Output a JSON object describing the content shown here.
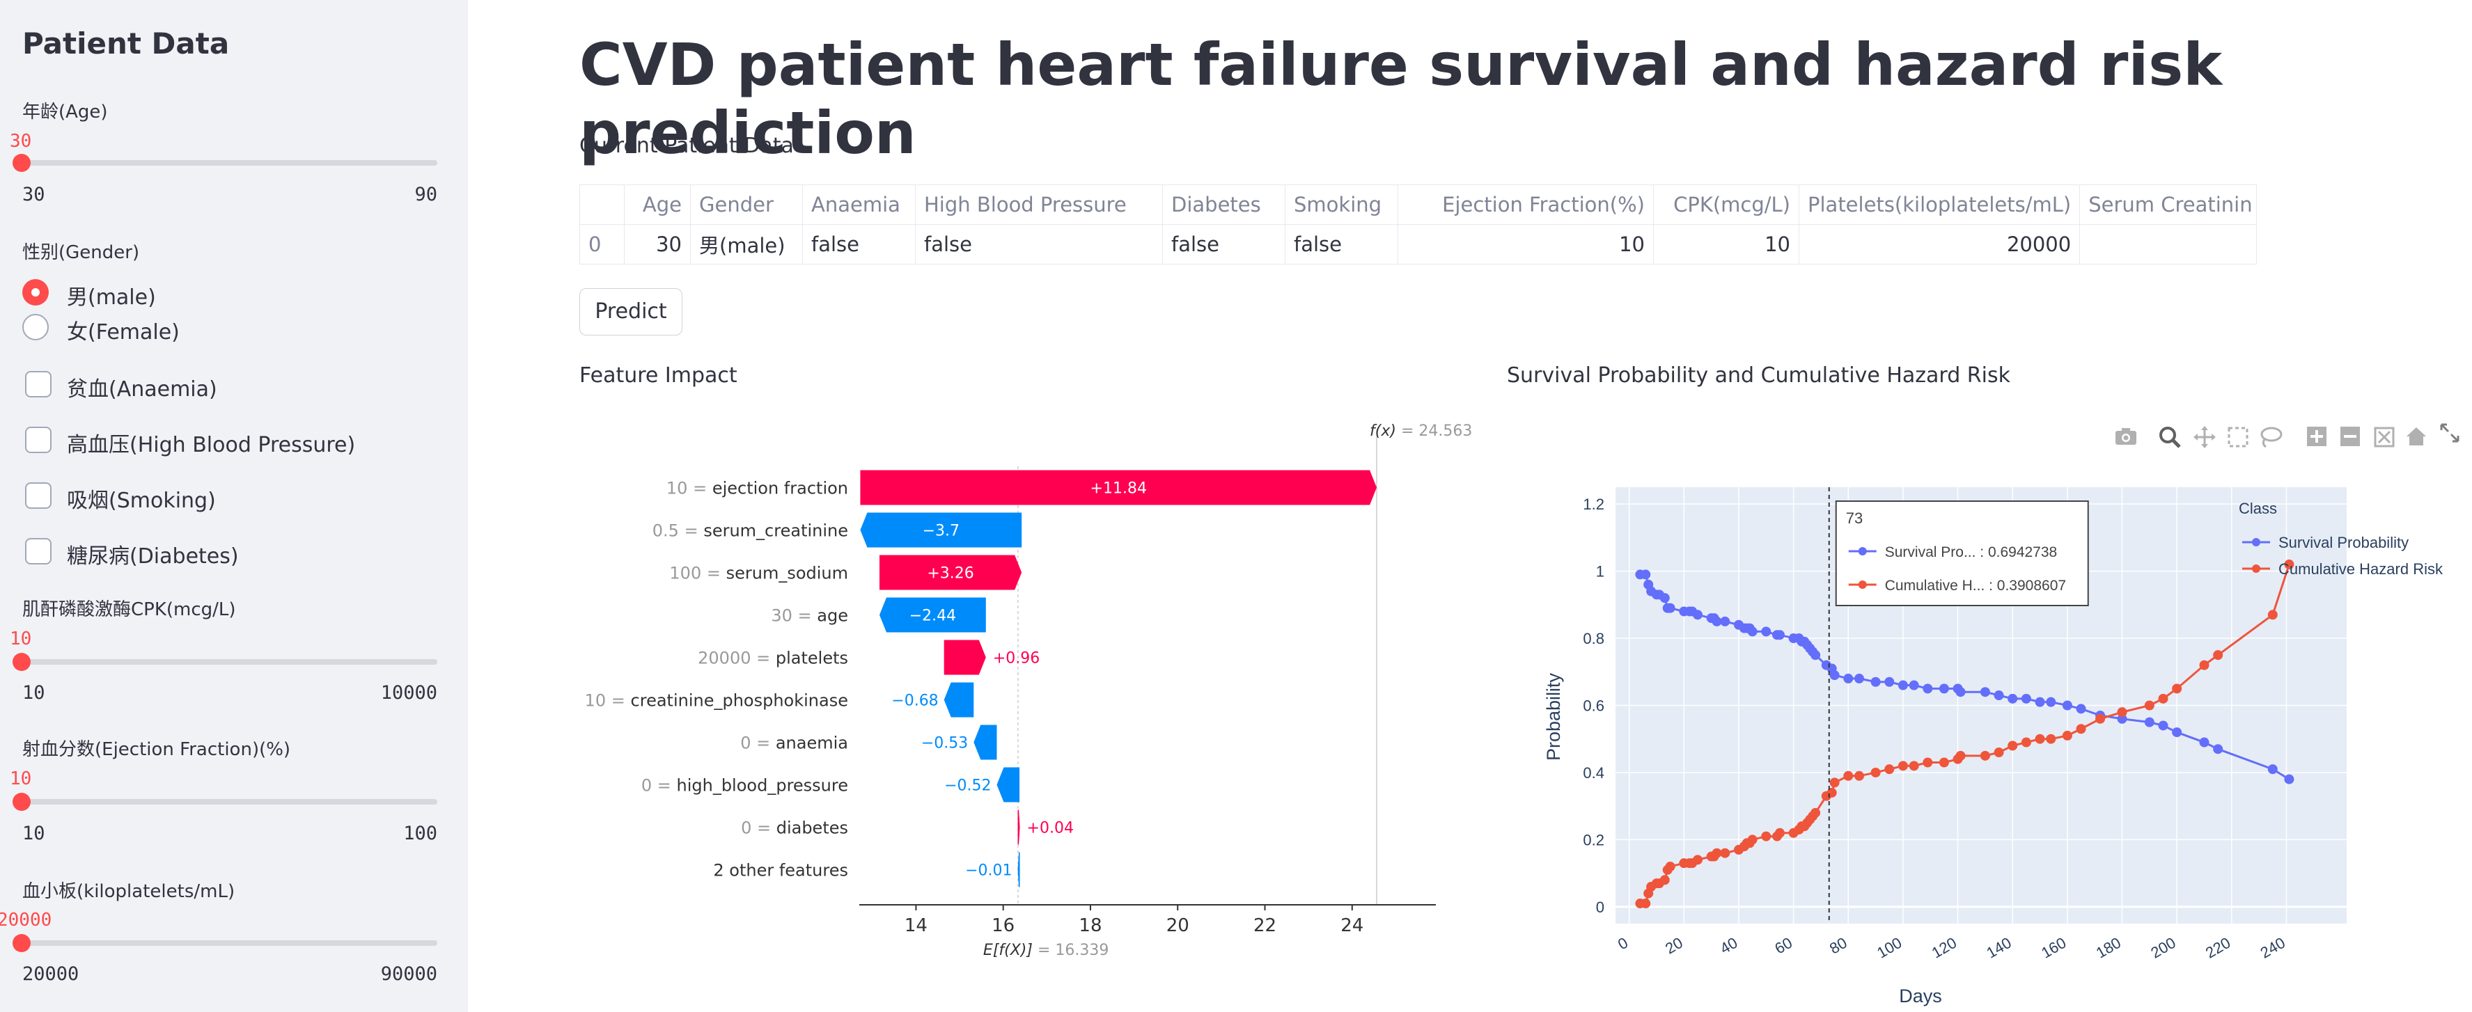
{
  "sidebar": {
    "title": "Patient Data",
    "age": {
      "label": "年龄(Age)",
      "value": "30",
      "min": "30",
      "max": "90",
      "fraction": 0
    },
    "gender": {
      "label": "性别(Gender)",
      "options": [
        "男(male)",
        "女(Female)"
      ],
      "selected": "男(male)"
    },
    "checkboxes": [
      "贫血(Anaemia)",
      "高血压(High Blood Pressure)",
      "吸烟(Smoking)",
      "糖尿病(Diabetes)"
    ],
    "cpk": {
      "label": "肌酐磷酸激酶CPK(mcg/L)",
      "value": "10",
      "min": "10",
      "max": "10000",
      "fraction": 0
    },
    "ejection": {
      "label": "射血分数(Ejection Fraction)(%)",
      "value": "10",
      "min": "10",
      "max": "100",
      "fraction": 0
    },
    "platelets": {
      "label": "血小板(kiloplatelets/mL)",
      "value": "20000",
      "min": "20000",
      "max": "90000",
      "fraction": 0
    }
  },
  "main": {
    "title": "CVD patient heart failure survival and hazard risk prediction",
    "current_label": "Current Patient Data",
    "table": {
      "headers": [
        "",
        "Age",
        "Gender",
        "Anaemia",
        "High Blood Pressure",
        "Diabetes",
        "Smoking",
        "Ejection Fraction(%)",
        "CPK(mcg/L)",
        "Platelets(kiloplatelets/mL)",
        "Serum Creatinin"
      ],
      "row": [
        "0",
        "30",
        "男(male)",
        "false",
        "false",
        "false",
        "false",
        "10",
        "10",
        "20000",
        ""
      ]
    },
    "predict_label": "Predict",
    "feature_impact_label": "Feature Impact",
    "survival_label": "Survival Probability and Cumulative Hazard Risk"
  },
  "colors": {
    "accent": "#ff4b4b",
    "positive": "#ff0051",
    "negative": "#008bfb",
    "survival": "#636efa",
    "hazard": "#ef553b"
  },
  "chart_data": [
    {
      "type": "bar",
      "title": "Feature Impact",
      "fx_label": "f(x)",
      "fx_value": "= 24.563",
      "base_label": "E[f(X)]",
      "base_value_text": "= 16.339",
      "base_value": 16.339,
      "fx": 24.563,
      "xlim": [
        12.7,
        25.6
      ],
      "xticks": [
        14,
        16,
        18,
        20,
        22,
        24
      ],
      "bars": [
        {
          "feature": "ejection fraction",
          "value_label": "10",
          "contribution": 11.84,
          "text": "+11.84",
          "start": 12.723,
          "end": 24.563
        },
        {
          "feature": "serum_creatinine",
          "value_label": "0.5",
          "contribution": -3.7,
          "text": "−3.7",
          "start": 16.423,
          "end": 12.723
        },
        {
          "feature": "serum_sodium",
          "value_label": "100",
          "contribution": 3.26,
          "text": "+3.26",
          "start": 13.163,
          "end": 16.423
        },
        {
          "feature": "age",
          "value_label": "30",
          "contribution": -2.44,
          "text": "−2.44",
          "start": 15.603,
          "end": 13.163
        },
        {
          "feature": "platelets",
          "value_label": "20000",
          "contribution": 0.96,
          "text": "+0.96",
          "start": 14.643,
          "end": 15.603
        },
        {
          "feature": "creatinine_phosphokinase",
          "value_label": "10",
          "contribution": -0.68,
          "text": "−0.68",
          "start": 15.323,
          "end": 14.643
        },
        {
          "feature": "anaemia",
          "value_label": "0",
          "contribution": -0.53,
          "text": "−0.53",
          "start": 15.853,
          "end": 15.323
        },
        {
          "feature": "high_blood_pressure",
          "value_label": "0",
          "contribution": -0.52,
          "text": "−0.52",
          "start": 16.373,
          "end": 15.853
        },
        {
          "feature": "diabetes",
          "value_label": "0",
          "contribution": 0.04,
          "text": "+0.04",
          "start": 16.333,
          "end": 16.373
        },
        {
          "feature": "2 other features",
          "value_label": "",
          "contribution": -0.01,
          "text": "−0.01",
          "start": 16.343,
          "end": 16.333
        }
      ]
    },
    {
      "type": "line",
      "title": "Survival Probability and Cumulative Hazard Risk",
      "xlabel": "Days",
      "ylabel": "Probability",
      "xlim": [
        -5,
        262
      ],
      "ylim": [
        -0.05,
        1.25
      ],
      "xticks": [
        0,
        20,
        40,
        60,
        80,
        100,
        120,
        140,
        160,
        180,
        200,
        220,
        240
      ],
      "yticks": [
        0,
        0.2,
        0.4,
        0.6,
        0.8,
        1,
        1.2
      ],
      "legend_title": "Class",
      "legend_position": "right",
      "hover": {
        "x": "73",
        "survival_text": "Survival Pro... : 0.6942738",
        "hazard_text": "Cumulative H... : 0.3908607"
      },
      "series": [
        {
          "name": "Survival Probability",
          "x": [
            4,
            6,
            7,
            8,
            10,
            11,
            13,
            14,
            15,
            20,
            22,
            23,
            25,
            30,
            31,
            32,
            35,
            40,
            42,
            43,
            44,
            45,
            50,
            54,
            55,
            60,
            62,
            63,
            64,
            65,
            66,
            67,
            68,
            72,
            74,
            75,
            80,
            84,
            90,
            95,
            100,
            104,
            109,
            115,
            120,
            121,
            130,
            135,
            140,
            145,
            150,
            154,
            160,
            165,
            172,
            180,
            190,
            195,
            200,
            210,
            215,
            235,
            241
          ],
          "y": [
            0.99,
            0.99,
            0.96,
            0.94,
            0.93,
            0.93,
            0.92,
            0.89,
            0.89,
            0.88,
            0.88,
            0.88,
            0.87,
            0.86,
            0.86,
            0.85,
            0.85,
            0.84,
            0.83,
            0.83,
            0.83,
            0.82,
            0.82,
            0.81,
            0.81,
            0.8,
            0.8,
            0.79,
            0.79,
            0.78,
            0.77,
            0.76,
            0.75,
            0.72,
            0.71,
            0.69,
            0.68,
            0.68,
            0.67,
            0.67,
            0.66,
            0.66,
            0.65,
            0.65,
            0.65,
            0.64,
            0.64,
            0.63,
            0.62,
            0.62,
            0.61,
            0.61,
            0.6,
            0.59,
            0.57,
            0.56,
            0.55,
            0.54,
            0.52,
            0.49,
            0.47,
            0.41,
            0.38
          ]
        },
        {
          "name": "Cumulative Hazard Risk",
          "x": [
            4,
            6,
            7,
            8,
            10,
            11,
            13,
            14,
            15,
            20,
            22,
            23,
            25,
            30,
            31,
            32,
            35,
            40,
            42,
            43,
            44,
            45,
            50,
            54,
            55,
            60,
            62,
            63,
            64,
            65,
            66,
            67,
            68,
            72,
            74,
            75,
            80,
            84,
            90,
            95,
            100,
            104,
            109,
            115,
            120,
            121,
            130,
            135,
            140,
            145,
            150,
            154,
            160,
            165,
            172,
            180,
            190,
            195,
            200,
            210,
            215,
            235,
            241
          ],
          "y": [
            0.01,
            0.01,
            0.04,
            0.06,
            0.07,
            0.07,
            0.08,
            0.11,
            0.12,
            0.13,
            0.13,
            0.13,
            0.14,
            0.15,
            0.15,
            0.16,
            0.16,
            0.17,
            0.18,
            0.19,
            0.19,
            0.2,
            0.21,
            0.21,
            0.22,
            0.22,
            0.23,
            0.24,
            0.24,
            0.25,
            0.26,
            0.27,
            0.28,
            0.33,
            0.34,
            0.37,
            0.39,
            0.39,
            0.4,
            0.41,
            0.42,
            0.42,
            0.43,
            0.43,
            0.44,
            0.45,
            0.45,
            0.46,
            0.48,
            0.49,
            0.5,
            0.5,
            0.51,
            0.53,
            0.56,
            0.58,
            0.6,
            0.62,
            0.65,
            0.72,
            0.75,
            0.87,
            1.02
          ]
        }
      ]
    }
  ]
}
